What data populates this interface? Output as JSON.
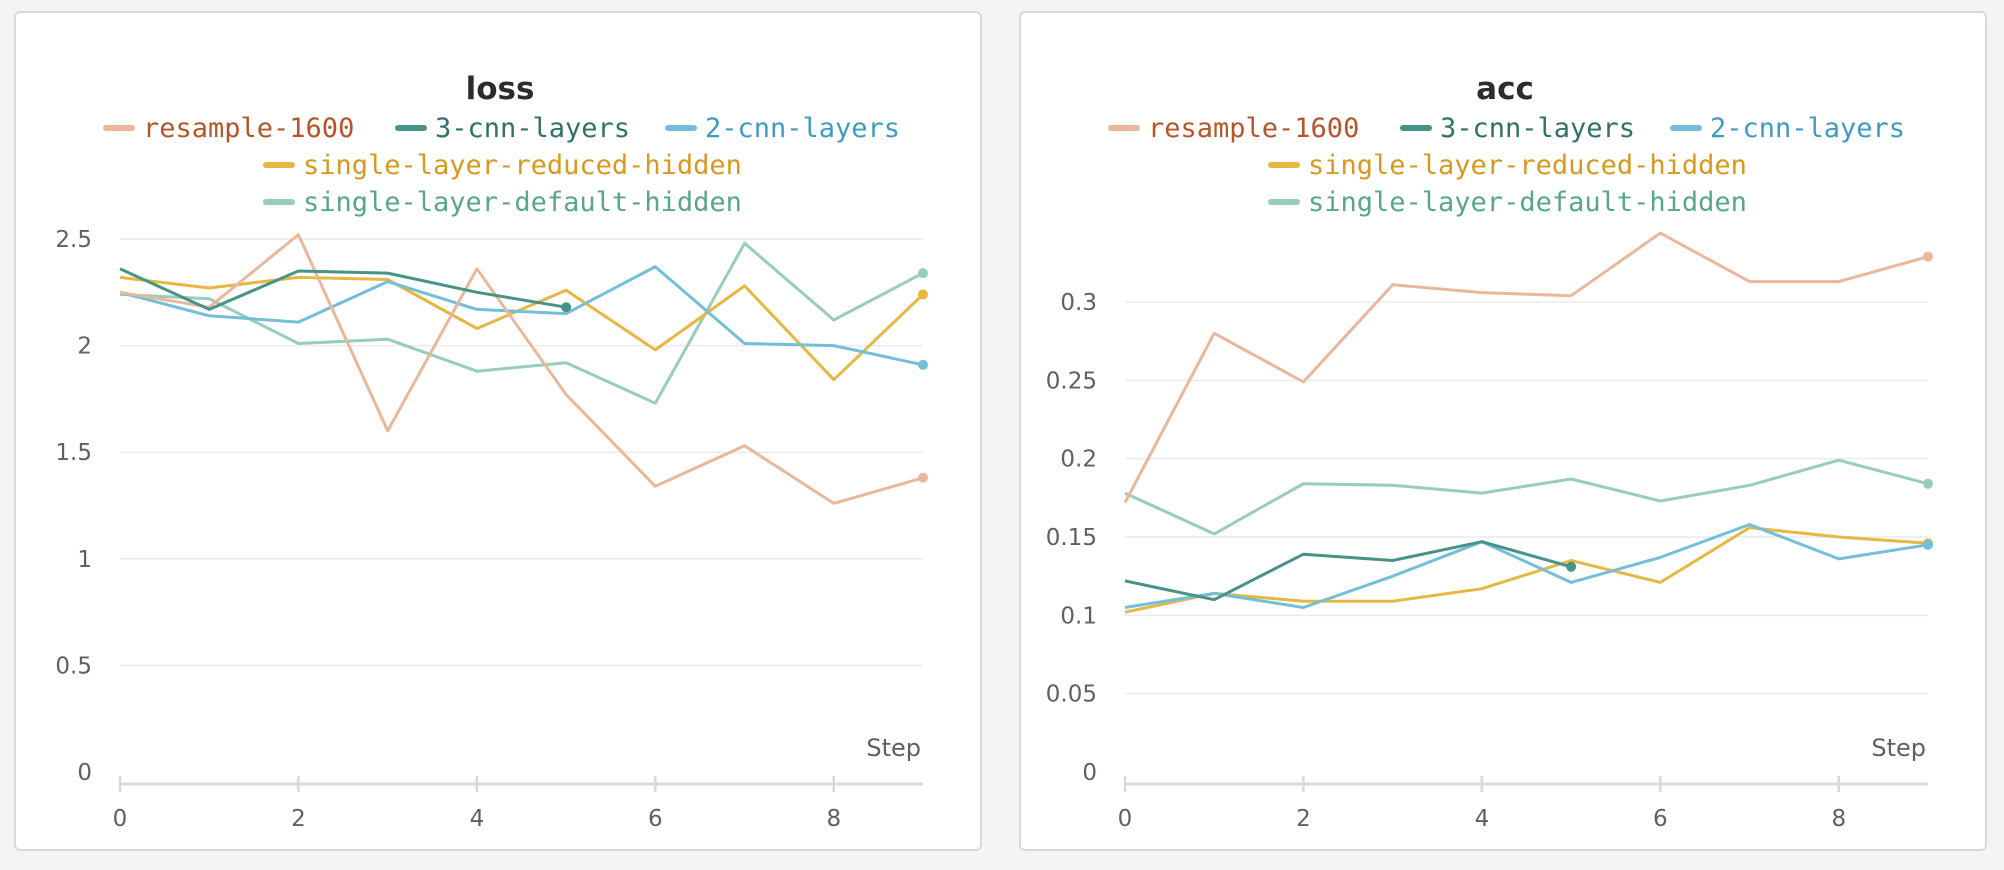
{
  "colors": {
    "resample-1600": "#e9b89c",
    "3-cnn-layers": "#479387",
    "2-cnn-layers": "#73bfd9",
    "single-layer-reduced-hidden": "#e6b843",
    "single-layer-default-hidden": "#98ceb9"
  },
  "legend_text_colors": {
    "resample-1600": "#b5562a",
    "3-cnn-layers": "#2f7268",
    "2-cnn-layers": "#3f9cc0",
    "single-layer-reduced-hidden": "#d9981e",
    "single-layer-default-hidden": "#5aa58d"
  },
  "chart_data": [
    {
      "type": "line",
      "title": "loss",
      "xlabel": "Step",
      "ylabel": "",
      "xlim": [
        0,
        9
      ],
      "ylim": [
        0,
        2.5
      ],
      "xticks": [
        0,
        2,
        4,
        6,
        8
      ],
      "yticks": [
        0,
        0.5,
        1,
        1.5,
        2,
        2.5
      ],
      "ytick_labels": [
        "0",
        "0.5",
        "1",
        "1.5",
        "2",
        "2.5"
      ],
      "grid": true,
      "legend_placement": "top",
      "series": [
        {
          "name": "resample-1600",
          "x": [
            0,
            1,
            2,
            3,
            4,
            5,
            6,
            7,
            8,
            9
          ],
          "y": [
            2.25,
            2.18,
            2.52,
            1.6,
            2.36,
            1.77,
            1.34,
            1.53,
            1.26,
            1.38
          ]
        },
        {
          "name": "3-cnn-layers",
          "x": [
            0,
            1,
            2,
            3,
            4,
            5
          ],
          "y": [
            2.36,
            2.17,
            2.35,
            2.34,
            2.25,
            2.18
          ]
        },
        {
          "name": "2-cnn-layers",
          "x": [
            0,
            1,
            2,
            3,
            4,
            5,
            6,
            7,
            8,
            9
          ],
          "y": [
            2.25,
            2.14,
            2.11,
            2.3,
            2.17,
            2.15,
            2.37,
            2.01,
            2.0,
            1.91
          ]
        },
        {
          "name": "single-layer-reduced-hidden",
          "x": [
            0,
            1,
            2,
            3,
            4,
            5,
            6,
            7,
            8,
            9
          ],
          "y": [
            2.32,
            2.27,
            2.32,
            2.31,
            2.08,
            2.26,
            1.98,
            2.28,
            1.84,
            2.24
          ]
        },
        {
          "name": "single-layer-default-hidden",
          "x": [
            0,
            1,
            2,
            3,
            4,
            5,
            6,
            7,
            8,
            9
          ],
          "y": [
            2.24,
            2.22,
            2.01,
            2.03,
            1.88,
            1.92,
            1.73,
            2.48,
            2.12,
            2.34
          ]
        }
      ]
    },
    {
      "type": "line",
      "title": "acc",
      "xlabel": "Step",
      "ylabel": "",
      "xlim": [
        0,
        9
      ],
      "ylim": [
        0,
        0.35
      ],
      "xticks": [
        0,
        2,
        4,
        6,
        8
      ],
      "yticks": [
        0,
        0.05,
        0.1,
        0.15,
        0.2,
        0.25,
        0.3
      ],
      "ytick_labels": [
        "0",
        "0.05",
        "0.1",
        "0.15",
        "0.2",
        "0.25",
        "0.3"
      ],
      "grid": true,
      "legend_placement": "top",
      "series": [
        {
          "name": "resample-1600",
          "x": [
            0,
            1,
            2,
            3,
            4,
            5,
            6,
            7,
            8,
            9
          ],
          "y": [
            0.172,
            0.28,
            0.249,
            0.311,
            0.306,
            0.304,
            0.344,
            0.313,
            0.313,
            0.329
          ]
        },
        {
          "name": "3-cnn-layers",
          "x": [
            0,
            1,
            2,
            3,
            4,
            5
          ],
          "y": [
            0.122,
            0.11,
            0.139,
            0.135,
            0.147,
            0.131
          ]
        },
        {
          "name": "2-cnn-layers",
          "x": [
            0,
            1,
            2,
            3,
            4,
            5,
            6,
            7,
            8,
            9
          ],
          "y": [
            0.105,
            0.114,
            0.105,
            0.125,
            0.147,
            0.121,
            0.137,
            0.158,
            0.136,
            0.145
          ]
        },
        {
          "name": "single-layer-reduced-hidden",
          "x": [
            0,
            1,
            2,
            3,
            4,
            5,
            6,
            7,
            8,
            9
          ],
          "y": [
            0.102,
            0.114,
            0.109,
            0.109,
            0.117,
            0.135,
            0.121,
            0.156,
            0.15,
            0.146
          ]
        },
        {
          "name": "single-layer-default-hidden",
          "x": [
            0,
            1,
            2,
            3,
            4,
            5,
            6,
            7,
            8,
            9
          ],
          "y": [
            0.178,
            0.152,
            0.184,
            0.183,
            0.178,
            0.187,
            0.173,
            0.183,
            0.199,
            0.184
          ]
        }
      ]
    }
  ]
}
